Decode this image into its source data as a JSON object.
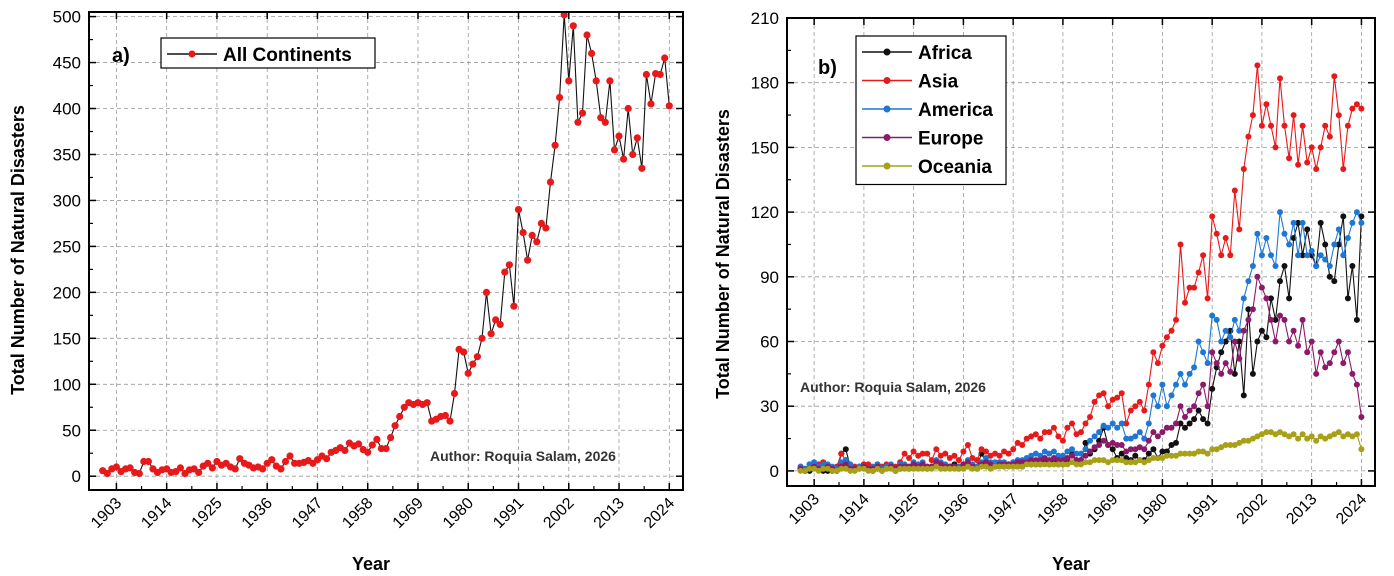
{
  "chart_data": [
    {
      "type": "line",
      "panel_label": "a)",
      "xlabel": "Year",
      "ylabel": "Total Number of Natural Disasters",
      "xlim": [
        1897,
        2027
      ],
      "ylim": [
        -15,
        505
      ],
      "xticks": [
        1903,
        1914,
        1925,
        1936,
        1947,
        1958,
        1969,
        1980,
        1991,
        2002,
        2013,
        2024
      ],
      "yticks": [
        0,
        50,
        100,
        150,
        200,
        250,
        300,
        350,
        400,
        450,
        500
      ],
      "grid": true,
      "legend": "top-left",
      "annotation": "Author: Roquia Salam, 2026",
      "x": [
        1900,
        1901,
        1902,
        1903,
        1904,
        1905,
        1906,
        1907,
        1908,
        1909,
        1910,
        1911,
        1912,
        1913,
        1914,
        1915,
        1916,
        1917,
        1918,
        1919,
        1920,
        1921,
        1922,
        1923,
        1924,
        1925,
        1926,
        1927,
        1928,
        1929,
        1930,
        1931,
        1932,
        1933,
        1934,
        1935,
        1936,
        1937,
        1938,
        1939,
        1940,
        1941,
        1942,
        1943,
        1944,
        1945,
        1946,
        1947,
        1948,
        1949,
        1950,
        1951,
        1952,
        1953,
        1954,
        1955,
        1956,
        1957,
        1958,
        1959,
        1960,
        1961,
        1962,
        1963,
        1964,
        1965,
        1966,
        1967,
        1968,
        1969,
        1970,
        1971,
        1972,
        1973,
        1974,
        1975,
        1976,
        1977,
        1978,
        1979,
        1980,
        1981,
        1982,
        1983,
        1984,
        1985,
        1986,
        1987,
        1988,
        1989,
        1990,
        1991,
        1992,
        1993,
        1994,
        1995,
        1996,
        1997,
        1998,
        1999,
        2000,
        2001,
        2002,
        2003,
        2004,
        2005,
        2006,
        2007,
        2008,
        2009,
        2010,
        2011,
        2012,
        2013,
        2014,
        2015,
        2016,
        2017,
        2018,
        2019,
        2020,
        2021,
        2022,
        2023,
        2024
      ],
      "series": [
        {
          "name": "All Continents",
          "color": "#e8191a",
          "values": [
            6,
            3,
            8,
            10,
            5,
            8,
            9,
            4,
            3,
            16,
            16,
            8,
            4,
            7,
            8,
            4,
            5,
            9,
            3,
            7,
            8,
            4,
            11,
            14,
            9,
            16,
            12,
            14,
            10,
            8,
            19,
            14,
            12,
            9,
            10,
            8,
            14,
            18,
            11,
            8,
            16,
            22,
            14,
            14,
            15,
            17,
            14,
            18,
            22,
            19,
            26,
            28,
            31,
            28,
            36,
            33,
            35,
            29,
            26,
            34,
            40,
            30,
            30,
            42,
            55,
            65,
            75,
            80,
            78,
            80,
            78,
            80,
            60,
            62,
            65,
            66,
            60,
            90,
            138,
            135,
            112,
            122,
            130,
            150,
            200,
            155,
            170,
            165,
            222,
            230,
            185,
            290,
            265,
            235,
            262,
            255,
            275,
            270,
            320,
            360,
            412,
            502,
            430,
            490,
            385,
            395,
            480,
            460,
            430,
            390,
            385,
            430,
            355,
            370,
            345,
            400,
            350,
            368,
            335,
            437,
            405,
            438,
            437,
            455,
            403
          ]
        }
      ]
    },
    {
      "type": "line",
      "panel_label": "b)",
      "xlabel": "Year",
      "ylabel": "Total Number of Natural Disasters",
      "xlim": [
        1897,
        2027
      ],
      "ylim": [
        -7,
        210
      ],
      "xticks": [
        1903,
        1914,
        1925,
        1936,
        1947,
        1958,
        1969,
        1980,
        1991,
        2002,
        2013,
        2024
      ],
      "yticks": [
        0,
        30,
        60,
        90,
        120,
        150,
        180,
        210
      ],
      "grid": true,
      "legend": "top-left",
      "annotation": "Author: Roquia Salam, 2026",
      "x": [
        1900,
        1901,
        1902,
        1903,
        1904,
        1905,
        1906,
        1907,
        1908,
        1909,
        1910,
        1911,
        1912,
        1913,
        1914,
        1915,
        1916,
        1917,
        1918,
        1919,
        1920,
        1921,
        1922,
        1923,
        1924,
        1925,
        1926,
        1927,
        1928,
        1929,
        1930,
        1931,
        1932,
        1933,
        1934,
        1935,
        1936,
        1937,
        1938,
        1939,
        1940,
        1941,
        1942,
        1943,
        1944,
        1945,
        1946,
        1947,
        1948,
        1949,
        1950,
        1951,
        1952,
        1953,
        1954,
        1955,
        1956,
        1957,
        1958,
        1959,
        1960,
        1961,
        1962,
        1963,
        1964,
        1965,
        1966,
        1967,
        1968,
        1969,
        1970,
        1971,
        1972,
        1973,
        1974,
        1975,
        1976,
        1977,
        1978,
        1979,
        1980,
        1981,
        1982,
        1983,
        1984,
        1985,
        1986,
        1987,
        1988,
        1989,
        1990,
        1991,
        1992,
        1993,
        1994,
        1995,
        1996,
        1997,
        1998,
        1999,
        2000,
        2001,
        2002,
        2003,
        2004,
        2005,
        2006,
        2007,
        2008,
        2009,
        2010,
        2011,
        2012,
        2013,
        2014,
        2015,
        2016,
        2017,
        2018,
        2019,
        2020,
        2021,
        2022,
        2023,
        2024
      ],
      "series": [
        {
          "name": "Africa",
          "color": "#111111",
          "values": [
            1,
            0,
            0,
            2,
            1,
            0,
            0,
            0,
            0,
            8,
            10,
            2,
            1,
            2,
            3,
            1,
            0,
            1,
            1,
            2,
            2,
            0,
            1,
            2,
            1,
            3,
            2,
            2,
            1,
            2,
            3,
            2,
            2,
            2,
            3,
            2,
            2,
            2,
            2,
            2,
            8,
            4,
            2,
            2,
            4,
            2,
            3,
            3,
            4,
            2,
            4,
            3,
            3,
            3,
            5,
            3,
            4,
            3,
            3,
            5,
            8,
            5,
            5,
            13,
            8,
            10,
            14,
            20,
            12,
            10,
            6,
            8,
            6,
            5,
            7,
            5,
            5,
            8,
            10,
            6,
            9,
            9,
            12,
            13,
            22,
            20,
            22,
            24,
            28,
            24,
            22,
            38,
            48,
            55,
            60,
            65,
            45,
            60,
            35,
            75,
            45,
            60,
            65,
            62,
            80,
            70,
            88,
            95,
            80,
            108,
            115,
            100,
            112,
            100,
            95,
            115,
            105,
            90,
            88,
            105,
            118,
            80,
            95,
            70,
            118
          ]
        },
        {
          "name": "Asia",
          "color": "#e8191a",
          "values": [
            2,
            1,
            3,
            3,
            3,
            4,
            2,
            1,
            2,
            8,
            5,
            3,
            2,
            2,
            3,
            3,
            1,
            3,
            2,
            3,
            2,
            2,
            4,
            8,
            6,
            9,
            7,
            8,
            8,
            5,
            10,
            7,
            8,
            6,
            7,
            5,
            9,
            12,
            6,
            5,
            10,
            9,
            7,
            8,
            7,
            9,
            8,
            10,
            13,
            12,
            15,
            16,
            17,
            15,
            18,
            18,
            20,
            16,
            14,
            20,
            22,
            17,
            18,
            22,
            25,
            32,
            35,
            36,
            30,
            33,
            34,
            36,
            22,
            28,
            30,
            32,
            28,
            40,
            55,
            50,
            58,
            62,
            65,
            70,
            105,
            78,
            85,
            85,
            92,
            100,
            80,
            118,
            110,
            100,
            108,
            100,
            130,
            112,
            140,
            155,
            165,
            188,
            160,
            170,
            160,
            150,
            182,
            160,
            145,
            165,
            142,
            160,
            143,
            150,
            140,
            150,
            160,
            155,
            183,
            165,
            140,
            160,
            168,
            170,
            168
          ]
        },
        {
          "name": "America",
          "color": "#1f77d4",
          "values": [
            2,
            1,
            3,
            4,
            2,
            3,
            3,
            2,
            1,
            4,
            5,
            3,
            1,
            2,
            2,
            1,
            2,
            3,
            1,
            2,
            3,
            1,
            3,
            3,
            2,
            4,
            3,
            4,
            2,
            2,
            5,
            4,
            3,
            2,
            2,
            2,
            3,
            5,
            3,
            2,
            4,
            6,
            4,
            4,
            4,
            4,
            3,
            4,
            5,
            5,
            6,
            7,
            8,
            7,
            9,
            8,
            9,
            7,
            7,
            9,
            10,
            8,
            8,
            10,
            14,
            16,
            18,
            21,
            20,
            22,
            20,
            22,
            15,
            15,
            16,
            18,
            15,
            22,
            35,
            30,
            40,
            30,
            35,
            40,
            45,
            40,
            45,
            48,
            60,
            55,
            50,
            72,
            70,
            60,
            65,
            62,
            70,
            65,
            80,
            88,
            95,
            110,
            100,
            108,
            100,
            95,
            120,
            110,
            105,
            115,
            100,
            115,
            100,
            102,
            95,
            100,
            98,
            95,
            105,
            112,
            100,
            108,
            115,
            120,
            115
          ]
        },
        {
          "name": "Europe",
          "color": "#8b1a6b",
          "values": [
            1,
            0,
            1,
            2,
            1,
            1,
            2,
            1,
            0,
            2,
            3,
            1,
            1,
            1,
            2,
            1,
            1,
            2,
            0,
            1,
            2,
            1,
            2,
            2,
            2,
            3,
            2,
            3,
            2,
            2,
            4,
            3,
            2,
            2,
            2,
            1,
            3,
            4,
            2,
            1,
            3,
            4,
            3,
            2,
            3,
            3,
            3,
            3,
            4,
            4,
            4,
            5,
            5,
            5,
            6,
            5,
            6,
            5,
            5,
            6,
            7,
            5,
            5,
            7,
            9,
            11,
            12,
            14,
            12,
            13,
            12,
            12,
            9,
            10,
            10,
            11,
            10,
            14,
            18,
            16,
            18,
            20,
            20,
            22,
            30,
            25,
            28,
            30,
            36,
            40,
            30,
            55,
            50,
            45,
            50,
            46,
            60,
            52,
            65,
            70,
            75,
            90,
            85,
            80,
            70,
            60,
            72,
            70,
            60,
            65,
            58,
            70,
            55,
            60,
            45,
            55,
            48,
            50,
            55,
            60,
            50,
            55,
            45,
            40,
            25
          ]
        },
        {
          "name": "Oceania",
          "color": "#a8a019",
          "values": [
            0,
            0,
            1,
            1,
            0,
            1,
            1,
            0,
            0,
            1,
            1,
            0,
            0,
            1,
            1,
            0,
            0,
            1,
            0,
            1,
            1,
            0,
            1,
            1,
            1,
            1,
            1,
            1,
            1,
            1,
            2,
            1,
            1,
            1,
            1,
            1,
            1,
            2,
            1,
            1,
            2,
            2,
            1,
            2,
            2,
            2,
            2,
            2,
            2,
            2,
            3,
            3,
            3,
            3,
            3,
            3,
            3,
            3,
            3,
            3,
            4,
            3,
            3,
            4,
            4,
            5,
            5,
            5,
            4,
            5,
            5,
            5,
            4,
            4,
            4,
            5,
            4,
            5,
            6,
            6,
            6,
            7,
            7,
            7,
            8,
            8,
            8,
            8,
            9,
            9,
            8,
            10,
            10,
            11,
            12,
            12,
            12,
            13,
            14,
            14,
            15,
            16,
            17,
            18,
            18,
            17,
            18,
            17,
            16,
            17,
            15,
            17,
            15,
            16,
            14,
            16,
            15,
            16,
            17,
            18,
            16,
            17,
            16,
            17,
            10
          ]
        }
      ]
    }
  ]
}
